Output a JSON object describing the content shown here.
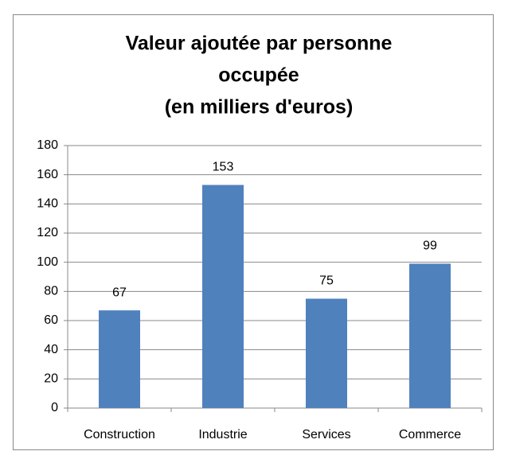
{
  "chart_data": {
    "type": "bar",
    "title": [
      "Valeur ajoutée par personne",
      "occupée",
      "(en milliers d'euros)"
    ],
    "categories": [
      "Construction",
      "Industrie",
      "Services",
      "Commerce"
    ],
    "values": [
      67,
      153,
      75,
      99
    ],
    "color": "#4f81bd",
    "ylim": [
      0,
      180
    ],
    "yticks": [
      0,
      20,
      40,
      60,
      80,
      100,
      120,
      140,
      160,
      180
    ],
    "grid": true,
    "data_labels": true
  }
}
